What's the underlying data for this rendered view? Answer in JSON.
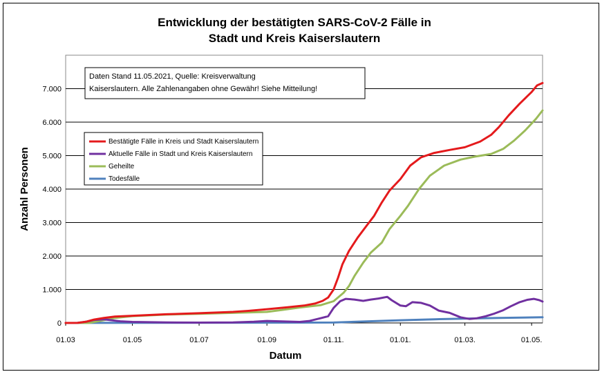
{
  "chart_data": {
    "type": "line",
    "title_lines": [
      "Entwicklung der bestätigten SARS-CoV-2 Fälle in",
      "Stadt und Kreis Kaiserslautern"
    ],
    "xlabel": "Datum",
    "ylabel": "Anzahl Personen",
    "note_lines": [
      "Daten Stand 11.05.2021, Quelle: Kreisverwaltung",
      "Kaiserslautern. Alle Zahlenangaben ohne Gewähr! Siehe Mitteilung!"
    ],
    "legend_position": "left",
    "grid": "horizontal",
    "x_range": [
      "2020-03-01",
      "2021-05-11"
    ],
    "x_ticks": [
      {
        "date": "2020-03-01",
        "label": "01.03"
      },
      {
        "date": "2020-05-01",
        "label": "01.05"
      },
      {
        "date": "2020-07-01",
        "label": "01.07"
      },
      {
        "date": "2020-09-01",
        "label": "01.09"
      },
      {
        "date": "2020-11-01",
        "label": "01.11."
      },
      {
        "date": "2021-01-01",
        "label": "01.01."
      },
      {
        "date": "2021-03-01",
        "label": "01.03."
      },
      {
        "date": "2021-05-01",
        "label": "01.05."
      }
    ],
    "ylim": [
      0,
      8000
    ],
    "y_ticks": [
      {
        "value": 0,
        "label": "0"
      },
      {
        "value": 1000,
        "label": "1.000"
      },
      {
        "value": 2000,
        "label": "2.000"
      },
      {
        "value": 3000,
        "label": "3.000"
      },
      {
        "value": 4000,
        "label": "4.000"
      },
      {
        "value": 5000,
        "label": "5.000"
      },
      {
        "value": 6000,
        "label": "6.000"
      },
      {
        "value": 7000,
        "label": "7.000"
      }
    ],
    "series": [
      {
        "name": "Bestätigte Fälle in Kreis und Stadt Kaiserslautern",
        "color": "#e41a1c",
        "points": [
          [
            "2020-03-01",
            0
          ],
          [
            "2020-03-12",
            2
          ],
          [
            "2020-03-20",
            40
          ],
          [
            "2020-03-27",
            100
          ],
          [
            "2020-04-05",
            150
          ],
          [
            "2020-04-15",
            190
          ],
          [
            "2020-05-01",
            215
          ],
          [
            "2020-06-01",
            260
          ],
          [
            "2020-07-01",
            290
          ],
          [
            "2020-08-01",
            330
          ],
          [
            "2020-08-15",
            360
          ],
          [
            "2020-09-01",
            410
          ],
          [
            "2020-09-20",
            470
          ],
          [
            "2020-10-05",
            520
          ],
          [
            "2020-10-15",
            580
          ],
          [
            "2020-10-22",
            660
          ],
          [
            "2020-10-27",
            760
          ],
          [
            "2020-11-01",
            1000
          ],
          [
            "2020-11-05",
            1350
          ],
          [
            "2020-11-09",
            1750
          ],
          [
            "2020-11-15",
            2150
          ],
          [
            "2020-11-23",
            2550
          ],
          [
            "2020-12-01",
            2900
          ],
          [
            "2020-12-08",
            3200
          ],
          [
            "2020-12-15",
            3600
          ],
          [
            "2020-12-22",
            3950
          ],
          [
            "2021-01-01",
            4300
          ],
          [
            "2021-01-10",
            4700
          ],
          [
            "2021-01-20",
            4950
          ],
          [
            "2021-02-01",
            5080
          ],
          [
            "2021-02-15",
            5170
          ],
          [
            "2021-03-01",
            5250
          ],
          [
            "2021-03-15",
            5420
          ],
          [
            "2021-03-25",
            5620
          ],
          [
            "2021-04-01",
            5850
          ],
          [
            "2021-04-10",
            6200
          ],
          [
            "2021-04-20",
            6550
          ],
          [
            "2021-05-01",
            6900
          ],
          [
            "2021-05-06",
            7100
          ],
          [
            "2021-05-11",
            7170
          ]
        ]
      },
      {
        "name": "Aktuelle Fälle in Stadt und Kreis Kaiserslautern",
        "color": "#7030a0",
        "points": [
          [
            "2020-03-01",
            0
          ],
          [
            "2020-03-12",
            2
          ],
          [
            "2020-03-20",
            40
          ],
          [
            "2020-03-27",
            90
          ],
          [
            "2020-04-05",
            110
          ],
          [
            "2020-04-12",
            80
          ],
          [
            "2020-04-20",
            50
          ],
          [
            "2020-05-01",
            30
          ],
          [
            "2020-06-01",
            15
          ],
          [
            "2020-07-01",
            10
          ],
          [
            "2020-08-01",
            15
          ],
          [
            "2020-08-20",
            35
          ],
          [
            "2020-09-01",
            60
          ],
          [
            "2020-09-15",
            45
          ],
          [
            "2020-10-01",
            30
          ],
          [
            "2020-10-10",
            60
          ],
          [
            "2020-10-20",
            140
          ],
          [
            "2020-10-27",
            200
          ],
          [
            "2020-11-01",
            450
          ],
          [
            "2020-11-07",
            650
          ],
          [
            "2020-11-12",
            720
          ],
          [
            "2020-11-20",
            700
          ],
          [
            "2020-11-28",
            660
          ],
          [
            "2020-12-05",
            700
          ],
          [
            "2020-12-12",
            730
          ],
          [
            "2020-12-20",
            780
          ],
          [
            "2020-12-24",
            680
          ],
          [
            "2021-01-01",
            520
          ],
          [
            "2021-01-06",
            500
          ],
          [
            "2021-01-12",
            620
          ],
          [
            "2021-01-20",
            600
          ],
          [
            "2021-01-28",
            520
          ],
          [
            "2021-02-05",
            370
          ],
          [
            "2021-02-15",
            300
          ],
          [
            "2021-02-25",
            170
          ],
          [
            "2021-03-05",
            120
          ],
          [
            "2021-03-12",
            140
          ],
          [
            "2021-03-20",
            200
          ],
          [
            "2021-03-28",
            280
          ],
          [
            "2021-04-05",
            380
          ],
          [
            "2021-04-12",
            500
          ],
          [
            "2021-04-20",
            620
          ],
          [
            "2021-04-27",
            690
          ],
          [
            "2021-05-03",
            720
          ],
          [
            "2021-05-08",
            680
          ],
          [
            "2021-05-11",
            640
          ]
        ]
      },
      {
        "name": "Geheilte",
        "color": "#9bbb59",
        "points": [
          [
            "2020-03-01",
            0
          ],
          [
            "2020-03-22",
            0
          ],
          [
            "2020-04-01",
            60
          ],
          [
            "2020-04-15",
            150
          ],
          [
            "2020-05-01",
            205
          ],
          [
            "2020-06-01",
            250
          ],
          [
            "2020-07-01",
            275
          ],
          [
            "2020-08-01",
            300
          ],
          [
            "2020-09-01",
            330
          ],
          [
            "2020-09-15",
            390
          ],
          [
            "2020-10-01",
            460
          ],
          [
            "2020-10-20",
            530
          ],
          [
            "2020-11-01",
            650
          ],
          [
            "2020-11-10",
            900
          ],
          [
            "2020-11-15",
            1100
          ],
          [
            "2020-11-20",
            1400
          ],
          [
            "2020-11-28",
            1800
          ],
          [
            "2020-12-05",
            2100
          ],
          [
            "2020-12-15",
            2400
          ],
          [
            "2020-12-22",
            2800
          ],
          [
            "2021-01-01",
            3200
          ],
          [
            "2021-01-08",
            3500
          ],
          [
            "2021-01-18",
            4000
          ],
          [
            "2021-01-28",
            4400
          ],
          [
            "2021-02-10",
            4700
          ],
          [
            "2021-02-25",
            4880
          ],
          [
            "2021-03-10",
            4970
          ],
          [
            "2021-03-25",
            5050
          ],
          [
            "2021-04-05",
            5200
          ],
          [
            "2021-04-15",
            5450
          ],
          [
            "2021-04-25",
            5750
          ],
          [
            "2021-05-05",
            6100
          ],
          [
            "2021-05-11",
            6350
          ]
        ]
      },
      {
        "name": "Todesfälle",
        "color": "#4f81bd",
        "points": [
          [
            "2020-03-01",
            0
          ],
          [
            "2020-04-01",
            3
          ],
          [
            "2020-06-01",
            6
          ],
          [
            "2020-09-01",
            8
          ],
          [
            "2020-11-01",
            12
          ],
          [
            "2020-12-01",
            45
          ],
          [
            "2021-01-01",
            80
          ],
          [
            "2021-02-01",
            110
          ],
          [
            "2021-03-01",
            130
          ],
          [
            "2021-04-01",
            150
          ],
          [
            "2021-05-11",
            170
          ]
        ]
      }
    ]
  }
}
